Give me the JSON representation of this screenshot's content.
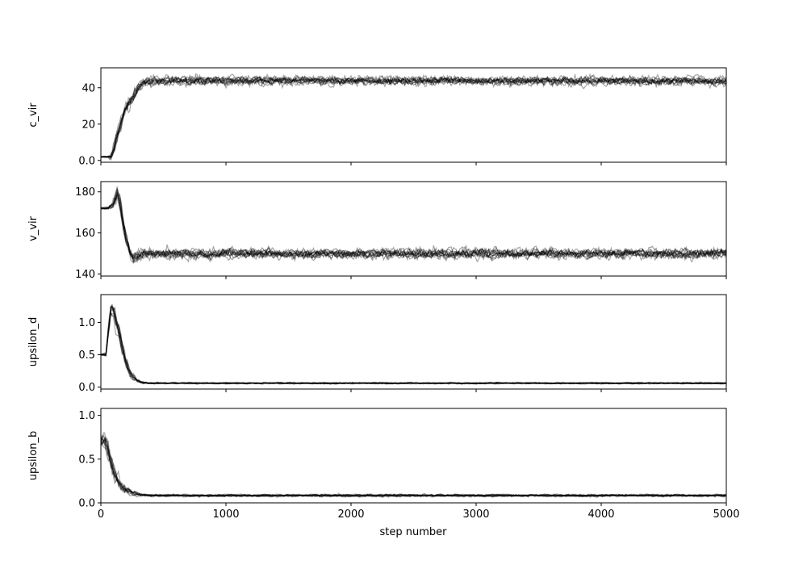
{
  "figure": {
    "xlabel": "step number"
  },
  "style": {
    "trace_color": "#000000",
    "axes_color": "#000000",
    "background": "#ffffff"
  },
  "chart_data": [
    {
      "type": "line",
      "ylabel": "c_vir",
      "xlim": [
        0,
        5000
      ],
      "ylim": [
        -1,
        51
      ],
      "yticks": [
        0,
        20,
        40
      ],
      "xticks": [
        0,
        1000,
        2000,
        3000,
        4000,
        5000
      ],
      "show_xtick_labels": false,
      "grid": false,
      "walkers": 12,
      "series": [
        {
          "x": [
            0,
            50,
            80,
            100,
            130,
            160,
            190,
            220,
            260,
            300,
            340,
            380,
            420,
            500,
            800,
            1200,
            2000,
            3000,
            4000,
            5000
          ],
          "y": [
            2,
            2,
            2,
            6,
            13,
            20,
            27,
            31,
            35,
            40,
            43,
            44,
            44,
            44,
            44,
            44,
            44,
            44,
            44,
            44
          ],
          "spread": [
            0.3,
            0.3,
            1.5,
            2.5,
            3,
            3,
            3,
            3,
            3,
            2.5,
            2,
            2,
            2,
            2,
            2,
            2,
            2,
            2,
            2,
            2
          ]
        }
      ]
    },
    {
      "type": "line",
      "ylabel": "v_vir",
      "xlim": [
        0,
        5000
      ],
      "ylim": [
        139,
        185
      ],
      "yticks": [
        140,
        160,
        180
      ],
      "xticks": [
        0,
        1000,
        2000,
        3000,
        4000,
        5000
      ],
      "show_xtick_labels": false,
      "grid": false,
      "walkers": 12,
      "series": [
        {
          "x": [
            0,
            60,
            100,
            130,
            150,
            170,
            200,
            230,
            260,
            300,
            400,
            1000,
            2000,
            3000,
            4000,
            5000
          ],
          "y": [
            172,
            172,
            174,
            179,
            176,
            168,
            158,
            151,
            148,
            149,
            150,
            150,
            150,
            150,
            150,
            150
          ],
          "spread": [
            0.5,
            0.5,
            2,
            3,
            3,
            3,
            3,
            3,
            3,
            2.5,
            2,
            2,
            2,
            2,
            2,
            2
          ]
        }
      ]
    },
    {
      "type": "line",
      "ylabel": "upsilon_d",
      "xlim": [
        0,
        5000
      ],
      "ylim": [
        -0.03,
        1.43
      ],
      "yticks": [
        0.0,
        0.5,
        1.0
      ],
      "xticks": [
        0,
        1000,
        2000,
        3000,
        4000,
        5000
      ],
      "show_xtick_labels": false,
      "grid": false,
      "walkers": 12,
      "series": [
        {
          "x": [
            0,
            40,
            60,
            80,
            100,
            130,
            160,
            190,
            220,
            250,
            290,
            330,
            380,
            500,
            1000,
            2000,
            3000,
            4000,
            5000
          ],
          "y": [
            0.5,
            0.5,
            0.9,
            1.2,
            1.15,
            0.95,
            0.7,
            0.45,
            0.28,
            0.17,
            0.1,
            0.07,
            0.06,
            0.06,
            0.06,
            0.06,
            0.06,
            0.06,
            0.06
          ],
          "spread": [
            0.01,
            0.02,
            0.1,
            0.1,
            0.1,
            0.1,
            0.1,
            0.08,
            0.06,
            0.04,
            0.02,
            0.015,
            0.01,
            0.01,
            0.01,
            0.01,
            0.01,
            0.01,
            0.01
          ]
        }
      ]
    },
    {
      "type": "line",
      "ylabel": "upsilon_b",
      "xlim": [
        0,
        5000
      ],
      "ylim": [
        0,
        1.08
      ],
      "yticks": [
        0.0,
        0.5,
        1.0
      ],
      "xticks": [
        0,
        1000,
        2000,
        3000,
        4000,
        5000
      ],
      "show_xtick_labels": true,
      "grid": false,
      "walkers": 12,
      "series": [
        {
          "x": [
            0,
            20,
            50,
            80,
            110,
            140,
            170,
            200,
            240,
            280,
            330,
            400,
            500,
            1000,
            2000,
            3000,
            4000,
            5000
          ],
          "y": [
            0.72,
            0.74,
            0.65,
            0.5,
            0.36,
            0.25,
            0.19,
            0.15,
            0.12,
            0.1,
            0.09,
            0.085,
            0.085,
            0.085,
            0.085,
            0.085,
            0.085,
            0.085
          ],
          "spread": [
            0.06,
            0.08,
            0.1,
            0.09,
            0.07,
            0.06,
            0.05,
            0.04,
            0.03,
            0.02,
            0.015,
            0.012,
            0.012,
            0.012,
            0.012,
            0.012,
            0.012,
            0.012
          ]
        }
      ]
    }
  ]
}
